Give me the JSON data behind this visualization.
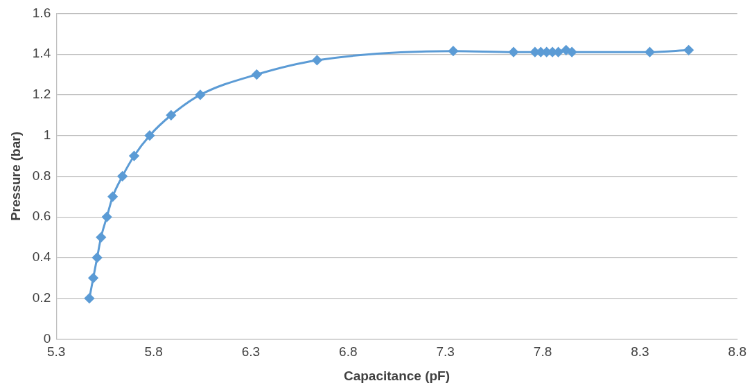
{
  "chart_data": {
    "type": "line",
    "xlabel": "Capacitance (pF)",
    "ylabel": "Pressure (bar)",
    "series": [
      {
        "color": "#5b9bd5",
        "x": [
          5.47,
          5.49,
          5.51,
          5.53,
          5.56,
          5.59,
          5.64,
          5.7,
          5.78,
          5.89,
          6.04,
          6.33,
          6.64,
          7.34,
          7.65,
          7.76,
          7.79,
          7.82,
          7.85,
          7.88,
          7.92,
          7.95,
          8.35,
          8.55
        ],
        "values": [
          0.2,
          0.3,
          0.4,
          0.5,
          0.6,
          0.7,
          0.8,
          0.9,
          1.0,
          1.1,
          1.2,
          1.3,
          1.37,
          1.415,
          1.41,
          1.41,
          1.41,
          1.41,
          1.41,
          1.41,
          1.42,
          1.41,
          1.41,
          1.42
        ]
      }
    ],
    "xlim": [
      5.3,
      8.8
    ],
    "xticks": [
      5.3,
      5.8,
      6.3,
      6.8,
      7.3,
      7.8,
      8.3,
      8.8
    ],
    "ylim": [
      0,
      1.6
    ],
    "yticks": [
      0,
      0.2,
      0.4,
      0.6,
      0.8,
      1,
      1.2,
      1.4,
      1.6
    ],
    "grid": "y",
    "legend": false,
    "marker": "diamond",
    "line_style": "solid"
  }
}
